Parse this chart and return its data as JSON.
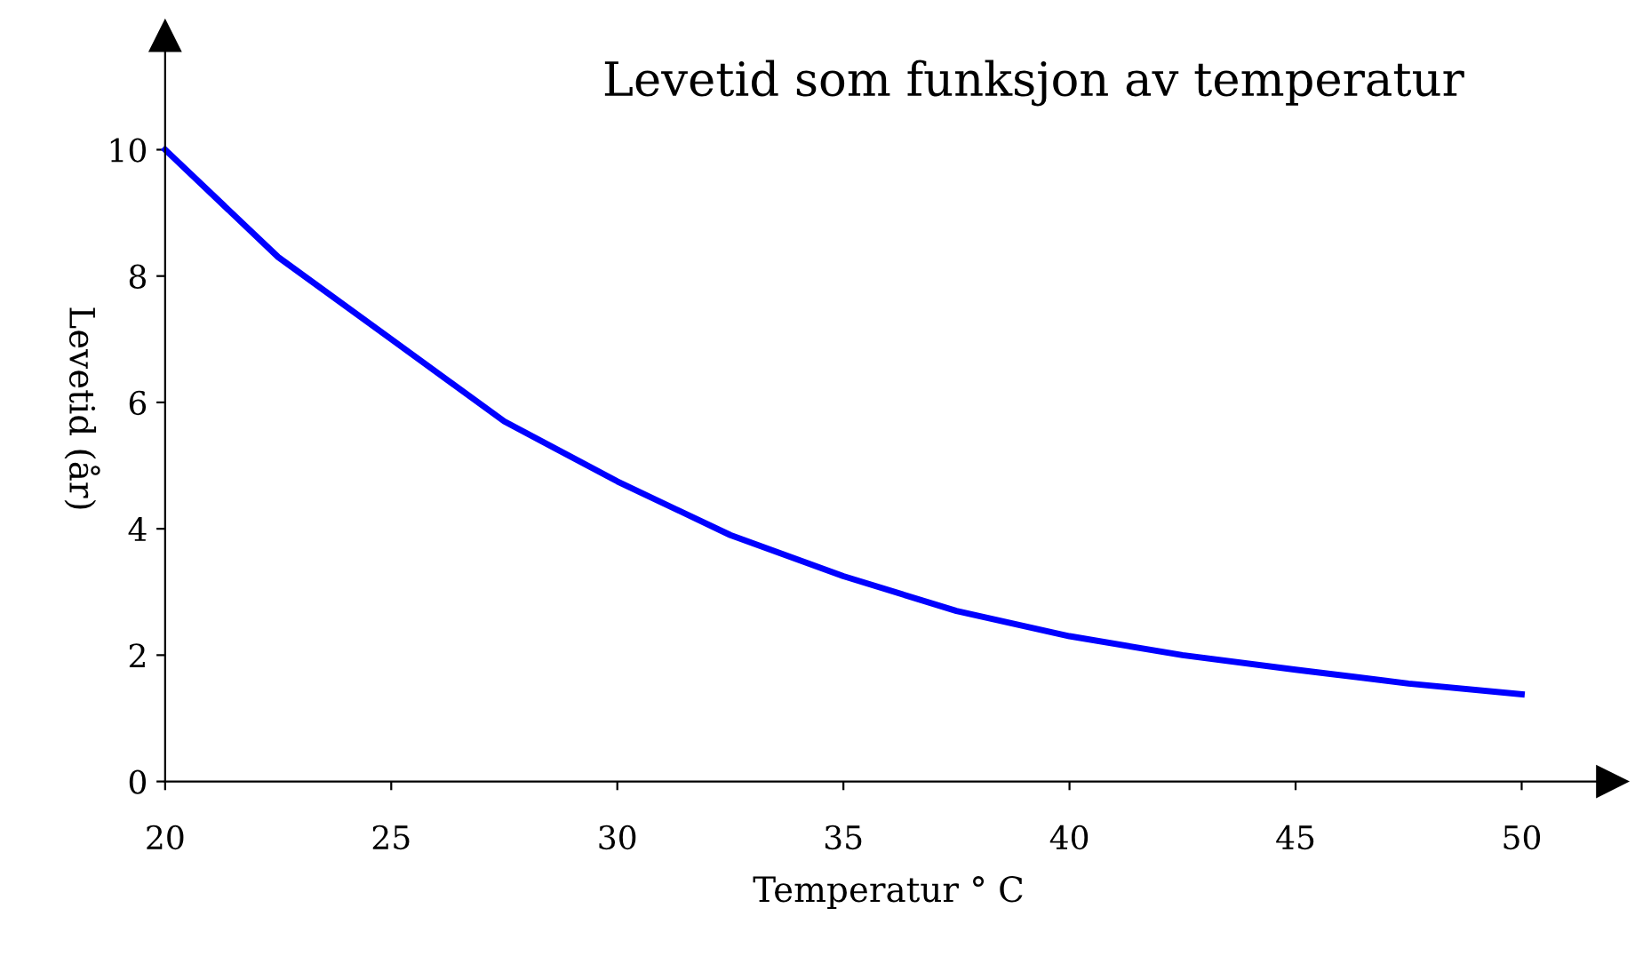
{
  "chart_data": {
    "type": "line",
    "title": "Levetid som funksjon av temperatur",
    "xlabel": "Temperatur ° C",
    "ylabel": "Levetid (år)",
    "x": [
      20,
      22.5,
      25,
      27.5,
      30,
      32.5,
      35,
      37.5,
      40,
      42.5,
      45,
      47.5,
      50
    ],
    "series": [
      {
        "color": "#0000ff",
        "values": [
          10.0,
          8.3,
          7.0,
          5.7,
          4.75,
          3.9,
          3.25,
          2.7,
          2.3,
          2.0,
          1.77,
          1.55,
          1.38
        ]
      }
    ],
    "xlim": [
      20,
      52
    ],
    "ylim": [
      0,
      11.8
    ],
    "xticks": [
      20,
      25,
      30,
      35,
      40,
      45,
      50
    ],
    "yticks": [
      0,
      2,
      4,
      6,
      8,
      10
    ],
    "grid": false,
    "marker": "none",
    "line_style": "solid"
  }
}
